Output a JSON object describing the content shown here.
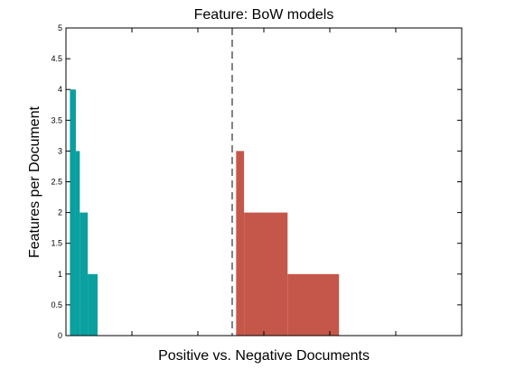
{
  "chart_data": {
    "type": "bar",
    "title": "Feature: BoW models",
    "xlabel": "Positive vs. Negative Documents",
    "ylabel": "Features per Document",
    "ylim": [
      0,
      5
    ],
    "yticks": [
      "0",
      "0.5",
      "1",
      "1.5",
      "2",
      "2.5",
      "3",
      "3.5",
      "4",
      "4.5",
      "5"
    ],
    "xlim": [
      0,
      100
    ],
    "divider_x": 42,
    "grid": false,
    "series": [
      {
        "colors": {
          "fill": "#0aa0a0"
        },
        "bars": [
          {
            "x0": 1,
            "x1": 2.5,
            "value": 4
          },
          {
            "x0": 2.5,
            "x1": 3.5,
            "value": 3
          },
          {
            "x0": 3.5,
            "x1": 5.5,
            "value": 2
          },
          {
            "x0": 5.5,
            "x1": 8,
            "value": 1
          }
        ]
      },
      {
        "colors": {
          "fill": "#c4574a"
        },
        "bars": [
          {
            "x0": 43,
            "x1": 45,
            "value": 3
          },
          {
            "x0": 45,
            "x1": 56,
            "value": 2
          },
          {
            "x0": 56,
            "x1": 69,
            "value": 1
          }
        ]
      }
    ]
  }
}
